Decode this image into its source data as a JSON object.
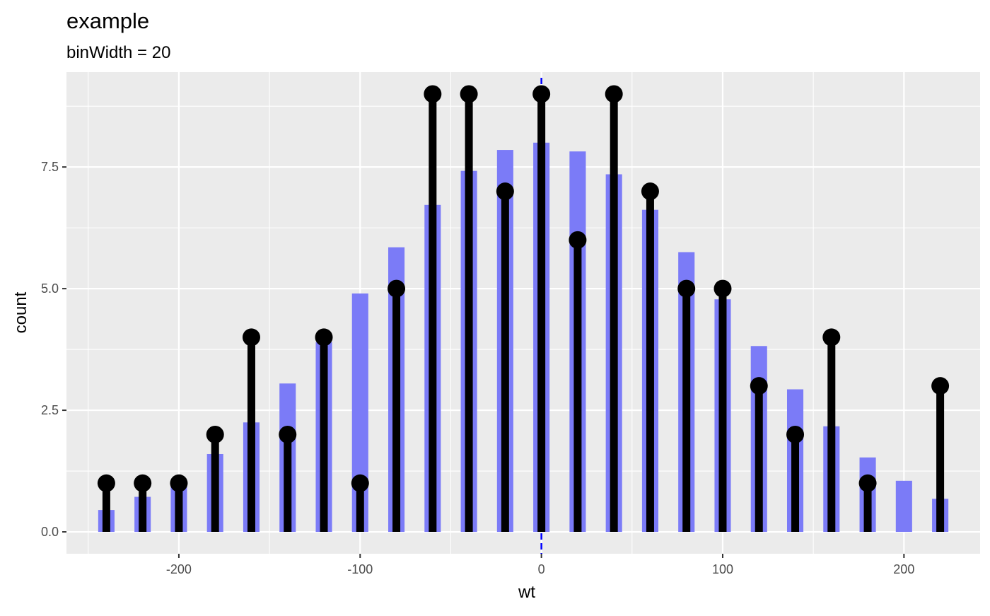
{
  "chart_data": {
    "type": "bar",
    "title": "example",
    "subtitle": "binWidth = 20",
    "xlabel": "wt",
    "ylabel": "count",
    "xlim": [
      -262,
      242
    ],
    "ylim": [
      -0.45,
      9.45
    ],
    "x_ticks": [
      -200,
      -100,
      0,
      100,
      200
    ],
    "x_tick_labels": [
      "-200",
      "-100",
      "0",
      "100",
      "200"
    ],
    "y_ticks": [
      0,
      2.5,
      5,
      7.5
    ],
    "y_tick_labels": [
      "0.0",
      "2.5",
      "5.0",
      "7.5"
    ],
    "grid": true,
    "bin_width": 20,
    "x": [
      -240,
      -220,
      -200,
      -180,
      -160,
      -140,
      -120,
      -100,
      -80,
      -60,
      -40,
      -20,
      0,
      20,
      40,
      60,
      80,
      100,
      120,
      140,
      160,
      180,
      200,
      220
    ],
    "series": [
      {
        "type": "bar",
        "values": [
          0.45,
          0.72,
          1.0,
          1.6,
          2.25,
          3.05,
          3.9,
          4.9,
          5.85,
          6.72,
          7.42,
          7.85,
          8.0,
          7.82,
          7.35,
          6.62,
          5.75,
          4.78,
          3.82,
          2.93,
          2.17,
          1.53,
          1.05,
          0.68
        ],
        "color": "#7b7bf7"
      },
      {
        "type": "lollipop",
        "values": [
          1,
          1,
          1,
          2,
          4,
          2,
          4,
          1,
          5,
          9,
          9,
          7,
          9,
          6,
          9,
          7,
          5,
          5,
          3,
          2,
          4,
          1,
          0,
          3
        ],
        "color": "#000000"
      }
    ],
    "reference_line": {
      "x": 0,
      "style": "dashed",
      "color": "#0000ff"
    },
    "colors": {
      "panel_background": "#ebebeb",
      "grid": "#ffffff",
      "bar": "#7b7bf7",
      "stem": "#000000",
      "reference": "#0000ff"
    }
  }
}
